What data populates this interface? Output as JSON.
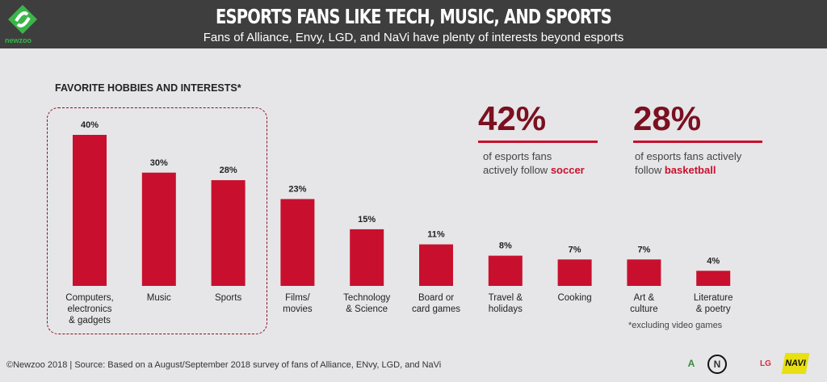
{
  "header": {
    "title": "ESPORTS FANS LIKE TECH, MUSIC, AND SPORTS",
    "subtitle": "Fans of Alliance, Envy, LGD, and NaVi have plenty of interests beyond esports",
    "logo_text": "newzoo"
  },
  "section_label": "FAVORITE HOBBIES AND INTERESTS*",
  "stats": [
    {
      "value": "42%",
      "line1": "of esports fans",
      "line2": "actively follow ",
      "highlight": "soccer"
    },
    {
      "value": "28%",
      "line1": "of esports fans actively",
      "line2": "follow ",
      "highlight": "basketball"
    }
  ],
  "footnote": "*excluding video games",
  "source": "©Newzoo 2018 | Source: Based on a August/September 2018 survey of fans of Alliance, ENvy, LGD, and NaVi",
  "teams": [
    "Alliance",
    "Envy",
    "LGD",
    "NaVi"
  ],
  "colors": {
    "bar": "#c8102e",
    "stat": "#7a1020",
    "header": "#3e3e3e",
    "background": "#e6e6e8"
  },
  "chart_data": {
    "type": "bar",
    "title": "FAVORITE HOBBIES AND INTERESTS*",
    "categories": [
      [
        "Computers,",
        "electronics",
        "& gadgets"
      ],
      [
        "Music"
      ],
      [
        "Sports"
      ],
      [
        "Films/",
        "movies"
      ],
      [
        "Technology",
        "& Science"
      ],
      [
        "Board or",
        "card games"
      ],
      [
        "Travel &",
        "holidays"
      ],
      [
        "Cooking"
      ],
      [
        "Art &",
        "culture"
      ],
      [
        "Literature",
        "& poetry"
      ]
    ],
    "values": [
      40,
      30,
      28,
      23,
      15,
      11,
      8,
      7,
      7,
      4
    ],
    "data_labels": [
      "40%",
      "30%",
      "28%",
      "23%",
      "15%",
      "11%",
      "8%",
      "7%",
      "7%",
      "4%"
    ],
    "highlighted": [
      "Computers, electronics & gadgets",
      "Music",
      "Sports"
    ],
    "ylim": [
      0,
      40
    ],
    "grid": false
  }
}
